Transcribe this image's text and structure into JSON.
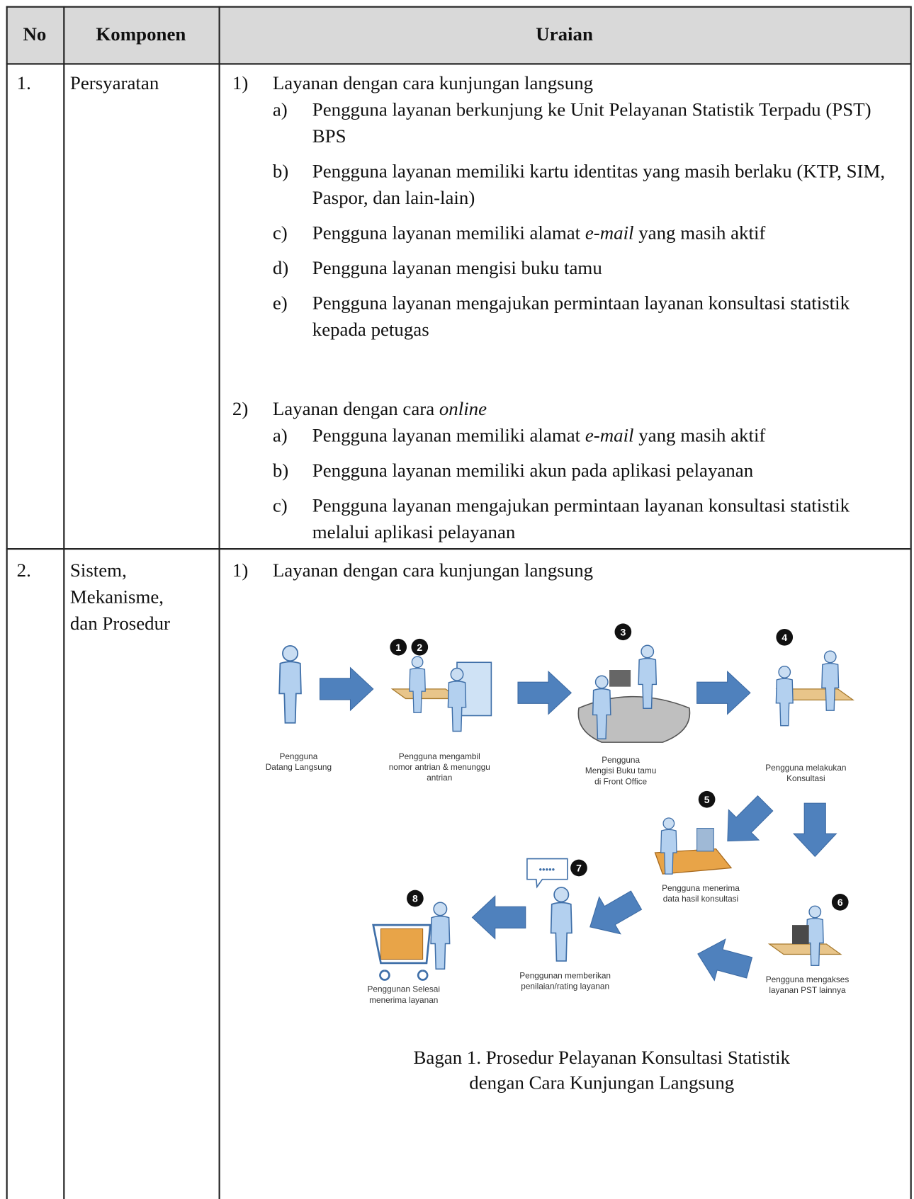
{
  "table": {
    "header": {
      "no": "No",
      "komponen": "Komponen",
      "uraian": "Uraian"
    },
    "rows": [
      {
        "no": "1.",
        "komponen": [
          "Persyaratan"
        ],
        "sections": [
          {
            "label": "1)",
            "title": [
              "Layanan dengan cara kunjungan langsung"
            ],
            "items": [
              {
                "label": "a)",
                "text": [
                  "Pengguna layanan berkunjung ke Unit Pelayanan Statistik Terpadu (PST) BPS"
                ]
              },
              {
                "label": "b)",
                "text": [
                  "Pengguna layanan memiliki kartu identitas yang masih berlaku (KTP, SIM, Paspor, dan lain-lain)"
                ]
              },
              {
                "label": "c)",
                "text": [
                  "Pengguna layanan memiliki alamat ",
                  {
                    "em": "e-mail"
                  },
                  " yang masih aktif"
                ]
              },
              {
                "label": "d)",
                "text": [
                  "Pengguna layanan mengisi buku tamu"
                ]
              },
              {
                "label": "e)",
                "text": [
                  "Pengguna layanan mengajukan permintaan layanan konsultasi statistik kepada petugas"
                ]
              }
            ]
          },
          {
            "label": "2)",
            "title": [
              "Layanan dengan cara ",
              {
                "em": "online"
              }
            ],
            "items": [
              {
                "label": "a)",
                "text": [
                  "Pengguna layanan memiliki alamat ",
                  {
                    "em": "e-mail"
                  },
                  " yang masih aktif"
                ]
              },
              {
                "label": "b)",
                "text": [
                  "Pengguna layanan memiliki akun pada aplikasi pelayanan"
                ]
              },
              {
                "label": "c)",
                "text": [
                  "Pengguna layanan mengajukan permintaan layanan konsultasi statistik melalui aplikasi pelayanan"
                ]
              }
            ]
          }
        ]
      },
      {
        "no": "2.",
        "komponen": [
          "Sistem,",
          "Mekanisme,",
          "dan Prosedur"
        ],
        "sections": [
          {
            "label": "1)",
            "title": [
              "Layanan dengan cara kunjungan langsung"
            ],
            "diagram": {
              "steps": [
                {
                  "label": [
                    "Pengguna",
                    "Datang Langsung"
                  ]
                },
                {
                  "numbers": [
                    "1",
                    "2"
                  ],
                  "label": [
                    "Pengguna mengambil",
                    "nomor antrian & menunggu",
                    "antrian"
                  ]
                },
                {
                  "numbers": [
                    "3"
                  ],
                  "label": [
                    "Pengguna",
                    "Mengisi Buku tamu",
                    "di Front Office"
                  ]
                },
                {
                  "numbers": [
                    "4"
                  ],
                  "label": [
                    "Pengguna melakukan",
                    "Konsultasi"
                  ]
                },
                {
                  "numbers": [
                    "5"
                  ],
                  "label": [
                    "Pengguna menerima",
                    "data hasil konsultasi"
                  ]
                },
                {
                  "numbers": [
                    "6"
                  ],
                  "label": [
                    "Pengguna mengakses",
                    "layanan PST lainnya"
                  ]
                },
                {
                  "numbers": [
                    "7"
                  ],
                  "label": [
                    "Penggunan memberikan",
                    "penilaian/rating layanan"
                  ]
                },
                {
                  "numbers": [
                    "8"
                  ],
                  "label": [
                    "Penggunan Selesai",
                    "menerima layanan"
                  ]
                }
              ],
              "caption": [
                "Bagan 1. Prosedur Pelayanan Konsultasi Statistik",
                "dengan Cara Kunjungan Langsung"
              ]
            }
          }
        ]
      }
    ]
  }
}
